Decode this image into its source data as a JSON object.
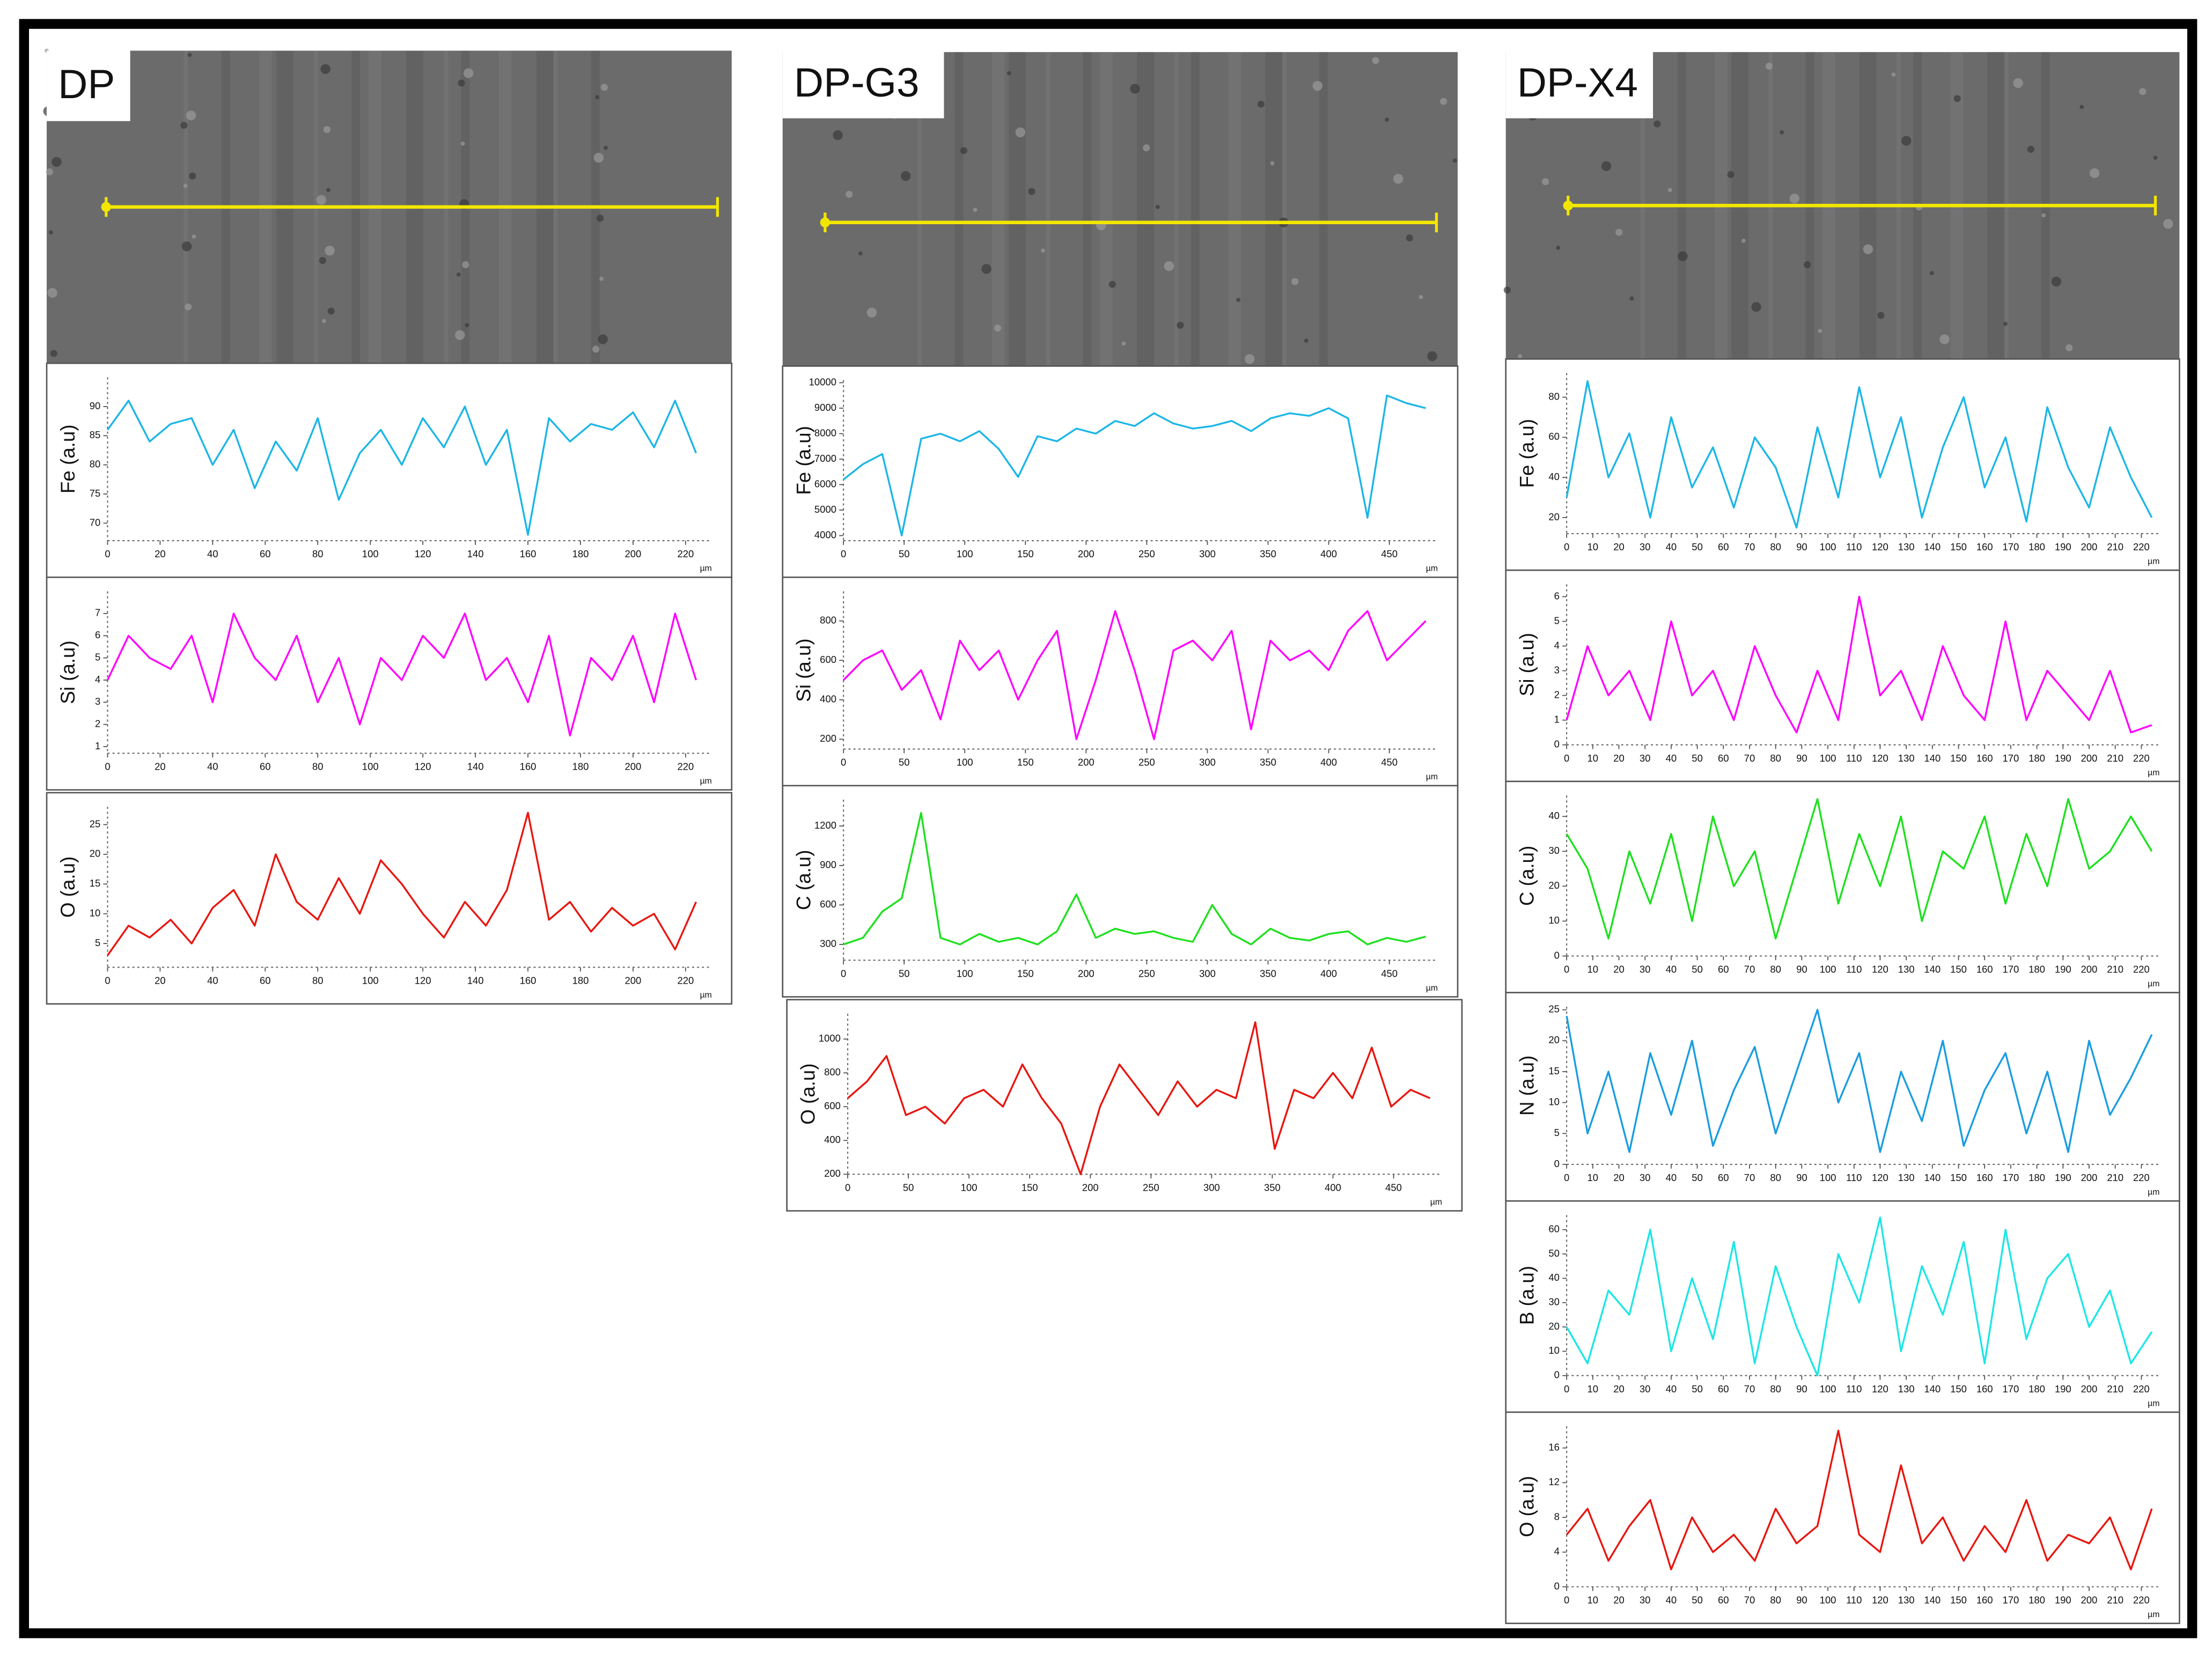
{
  "panel_titles": [
    "DP",
    "DP-G3",
    "DP-X4"
  ],
  "chart_data": [
    {
      "type": "line",
      "ylabel": "Fe (a.u)",
      "xlabel": "µm",
      "color": "#1cb6e6",
      "x": [
        0,
        8,
        16,
        24,
        32,
        40,
        48,
        56,
        64,
        72,
        80,
        88,
        96,
        104,
        112,
        120,
        128,
        136,
        144,
        152,
        160,
        168,
        176,
        184,
        192,
        200,
        208,
        216,
        224
      ],
      "values": [
        86,
        91,
        84,
        87,
        88,
        80,
        86,
        76,
        84,
        79,
        88,
        74,
        82,
        86,
        80,
        88,
        83,
        90,
        80,
        86,
        68,
        88,
        84,
        87,
        86,
        89,
        83,
        91,
        82
      ],
      "xlim": [
        0,
        230
      ],
      "ylim": [
        67,
        95
      ],
      "xticks": [
        0,
        20,
        40,
        60,
        80,
        100,
        120,
        140,
        160,
        180,
        200,
        220
      ],
      "yticks": [
        70,
        75,
        80,
        85,
        90
      ]
    },
    {
      "type": "line",
      "ylabel": "Si (a.u)",
      "xlabel": "µm",
      "color": "#ff00ff",
      "x": [
        0,
        8,
        16,
        24,
        32,
        40,
        48,
        56,
        64,
        72,
        80,
        88,
        96,
        104,
        112,
        120,
        128,
        136,
        144,
        152,
        160,
        168,
        176,
        184,
        192,
        200,
        208,
        216,
        224
      ],
      "values": [
        4,
        6,
        5,
        4.5,
        6,
        3,
        7,
        5,
        4,
        6,
        3,
        5,
        2,
        5,
        4,
        6,
        5,
        7,
        4,
        5,
        3,
        6,
        1.5,
        5,
        4,
        6,
        3,
        7,
        4
      ],
      "xlim": [
        0,
        230
      ],
      "ylim": [
        0.7,
        8
      ],
      "xticks": [
        0,
        20,
        40,
        60,
        80,
        100,
        120,
        140,
        160,
        180,
        200,
        220
      ],
      "yticks": [
        1,
        2,
        3,
        4,
        5,
        6,
        7
      ]
    },
    {
      "type": "line",
      "ylabel": "O (a.u)",
      "xlabel": "µm",
      "color": "#e8160f",
      "x": [
        0,
        8,
        16,
        24,
        32,
        40,
        48,
        56,
        64,
        72,
        80,
        88,
        96,
        104,
        112,
        120,
        128,
        136,
        144,
        152,
        160,
        168,
        176,
        184,
        192,
        200,
        208,
        216,
        224
      ],
      "values": [
        3,
        8,
        6,
        9,
        5,
        11,
        14,
        8,
        20,
        12,
        9,
        16,
        10,
        19,
        15,
        10,
        6,
        12,
        8,
        14,
        27,
        9,
        12,
        7,
        11,
        8,
        10,
        4,
        12
      ],
      "xlim": [
        0,
        230
      ],
      "ylim": [
        1,
        28
      ],
      "xticks": [
        0,
        20,
        40,
        60,
        80,
        100,
        120,
        140,
        160,
        180,
        200,
        220
      ],
      "yticks": [
        5,
        10,
        15,
        20,
        25
      ]
    },
    {
      "type": "line",
      "ylabel": "Fe (a.u)",
      "xlabel": "µm",
      "color": "#1cb6e6",
      "x": [
        0,
        16,
        32,
        48,
        64,
        80,
        96,
        112,
        128,
        144,
        160,
        176,
        192,
        208,
        224,
        240,
        256,
        272,
        288,
        304,
        320,
        336,
        352,
        368,
        384,
        400,
        416,
        432,
        448,
        464,
        480
      ],
      "values": [
        6200,
        6800,
        7200,
        4000,
        7800,
        8000,
        7700,
        8100,
        7400,
        6300,
        7900,
        7700,
        8200,
        8000,
        8500,
        8300,
        8800,
        8400,
        8200,
        8300,
        8500,
        8100,
        8600,
        8800,
        8700,
        9000,
        8600,
        4700,
        9500,
        9200,
        9000
      ],
      "xlim": [
        0,
        490
      ],
      "ylim": [
        3800,
        10100
      ],
      "xticks": [
        0,
        50,
        100,
        150,
        200,
        250,
        300,
        350,
        400,
        450
      ],
      "yticks": [
        4000,
        5000,
        6000,
        7000,
        8000,
        9000,
        10000
      ]
    },
    {
      "type": "line",
      "ylabel": "Si (a.u)",
      "xlabel": "µm",
      "color": "#ff00ff",
      "x": [
        0,
        16,
        32,
        48,
        64,
        80,
        96,
        112,
        128,
        144,
        160,
        176,
        192,
        208,
        224,
        240,
        256,
        272,
        288,
        304,
        320,
        336,
        352,
        368,
        384,
        400,
        416,
        432,
        448,
        464,
        480
      ],
      "values": [
        500,
        600,
        650,
        450,
        550,
        300,
        700,
        550,
        650,
        400,
        600,
        750,
        200,
        500,
        850,
        550,
        200,
        650,
        700,
        600,
        750,
        250,
        700,
        600,
        650,
        550,
        750,
        850,
        600,
        700,
        800
      ],
      "xlim": [
        0,
        490
      ],
      "ylim": [
        150,
        950
      ],
      "xticks": [
        0,
        50,
        100,
        150,
        200,
        250,
        300,
        350,
        400,
        450
      ],
      "yticks": [
        200,
        400,
        600,
        800
      ]
    },
    {
      "type": "line",
      "ylabel": "C (a.u)",
      "xlabel": "µm",
      "color": "#1ee01e",
      "x": [
        0,
        16,
        32,
        48,
        64,
        80,
        96,
        112,
        128,
        144,
        160,
        176,
        192,
        208,
        224,
        240,
        256,
        272,
        288,
        304,
        320,
        336,
        352,
        368,
        384,
        400,
        416,
        432,
        448,
        464,
        480
      ],
      "values": [
        300,
        350,
        550,
        650,
        1300,
        350,
        300,
        380,
        320,
        350,
        300,
        400,
        680,
        350,
        420,
        380,
        400,
        350,
        320,
        600,
        380,
        300,
        420,
        350,
        330,
        380,
        400,
        300,
        350,
        320,
        360
      ],
      "xlim": [
        0,
        490
      ],
      "ylim": [
        180,
        1400
      ],
      "xticks": [
        0,
        50,
        100,
        150,
        200,
        250,
        300,
        350,
        400,
        450
      ],
      "yticks": [
        300,
        600,
        900,
        1200
      ]
    },
    {
      "type": "line",
      "ylabel": "O (a.u)",
      "xlabel": "µm",
      "color": "#e8160f",
      "x": [
        0,
        16,
        32,
        48,
        64,
        80,
        96,
        112,
        128,
        144,
        160,
        176,
        192,
        208,
        224,
        240,
        256,
        272,
        288,
        304,
        320,
        336,
        352,
        368,
        384,
        400,
        416,
        432,
        448,
        464,
        480
      ],
      "values": [
        650,
        750,
        900,
        550,
        600,
        500,
        650,
        700,
        600,
        850,
        650,
        500,
        200,
        600,
        850,
        700,
        550,
        750,
        600,
        700,
        650,
        1100,
        350,
        700,
        650,
        800,
        650,
        950,
        600,
        700,
        650
      ],
      "xlim": [
        0,
        490
      ],
      "ylim": [
        200,
        1150
      ],
      "xticks": [
        0,
        50,
        100,
        150,
        200,
        250,
        300,
        350,
        400,
        450
      ],
      "yticks": [
        200,
        400,
        600,
        800,
        1000
      ]
    },
    {
      "type": "line",
      "ylabel": "Fe (a.u)",
      "xlabel": "µm",
      "color": "#1cb6e6",
      "x": [
        0,
        8,
        16,
        24,
        32,
        40,
        48,
        56,
        64,
        72,
        80,
        88,
        96,
        104,
        112,
        120,
        128,
        136,
        144,
        152,
        160,
        168,
        176,
        184,
        192,
        200,
        208,
        216,
        224
      ],
      "values": [
        30,
        88,
        40,
        62,
        20,
        70,
        35,
        55,
        25,
        60,
        45,
        15,
        65,
        30,
        85,
        40,
        70,
        20,
        55,
        80,
        35,
        60,
        18,
        75,
        45,
        25,
        65,
        40,
        20
      ],
      "xlim": [
        0,
        227
      ],
      "ylim": [
        12,
        92
      ],
      "xticks": [
        0,
        10,
        20,
        30,
        40,
        50,
        60,
        70,
        80,
        90,
        100,
        110,
        120,
        130,
        140,
        150,
        160,
        170,
        180,
        190,
        200,
        210,
        220
      ],
      "yticks": [
        20,
        40,
        60,
        80
      ]
    },
    {
      "type": "line",
      "ylabel": "Si (a.u)",
      "xlabel": "µm",
      "color": "#ff00ff",
      "x": [
        0,
        8,
        16,
        24,
        32,
        40,
        48,
        56,
        64,
        72,
        80,
        88,
        96,
        104,
        112,
        120,
        128,
        136,
        144,
        152,
        160,
        168,
        176,
        184,
        192,
        200,
        208,
        216,
        224
      ],
      "values": [
        1,
        4,
        2,
        3,
        1,
        5,
        2,
        3,
        1,
        4,
        2,
        0.5,
        3,
        1,
        6,
        2,
        3,
        1,
        4,
        2,
        1,
        5,
        1,
        3,
        2,
        1,
        3,
        0.5,
        0.8
      ],
      "xlim": [
        0,
        227
      ],
      "ylim": [
        0,
        6.5
      ],
      "xticks": [
        0,
        10,
        20,
        30,
        40,
        50,
        60,
        70,
        80,
        90,
        100,
        110,
        120,
        130,
        140,
        150,
        160,
        170,
        180,
        190,
        200,
        210,
        220
      ],
      "yticks": [
        0,
        1,
        2,
        3,
        4,
        5,
        6
      ]
    },
    {
      "type": "line",
      "ylabel": "C (a.u)",
      "xlabel": "µm",
      "color": "#1ee01e",
      "x": [
        0,
        8,
        16,
        24,
        32,
        40,
        48,
        56,
        64,
        72,
        80,
        88,
        96,
        104,
        112,
        120,
        128,
        136,
        144,
        152,
        160,
        168,
        176,
        184,
        192,
        200,
        208,
        216,
        224
      ],
      "values": [
        35,
        25,
        5,
        30,
        15,
        35,
        10,
        40,
        20,
        30,
        5,
        25,
        45,
        15,
        35,
        20,
        40,
        10,
        30,
        25,
        40,
        15,
        35,
        20,
        45,
        25,
        30,
        40,
        30
      ],
      "xlim": [
        0,
        227
      ],
      "ylim": [
        0,
        46
      ],
      "xticks": [
        0,
        10,
        20,
        30,
        40,
        50,
        60,
        70,
        80,
        90,
        100,
        110,
        120,
        130,
        140,
        150,
        160,
        170,
        180,
        190,
        200,
        210,
        220
      ],
      "yticks": [
        0,
        10,
        20,
        30,
        40
      ]
    },
    {
      "type": "line",
      "ylabel": "N (a.u)",
      "xlabel": "µm",
      "color": "#1a9de0",
      "x": [
        0,
        8,
        16,
        24,
        32,
        40,
        48,
        56,
        64,
        72,
        80,
        88,
        96,
        104,
        112,
        120,
        128,
        136,
        144,
        152,
        160,
        168,
        176,
        184,
        192,
        200,
        208,
        216,
        224
      ],
      "values": [
        24,
        5,
        15,
        2,
        18,
        8,
        20,
        3,
        12,
        19,
        5,
        15,
        25,
        10,
        18,
        2,
        15,
        7,
        20,
        3,
        12,
        18,
        5,
        15,
        2,
        20,
        8,
        14,
        21
      ],
      "xlim": [
        0,
        227
      ],
      "ylim": [
        0,
        25.5
      ],
      "xticks": [
        0,
        10,
        20,
        30,
        40,
        50,
        60,
        70,
        80,
        90,
        100,
        110,
        120,
        130,
        140,
        150,
        160,
        170,
        180,
        190,
        200,
        210,
        220
      ],
      "yticks": [
        0,
        5,
        10,
        15,
        20,
        25
      ]
    },
    {
      "type": "line",
      "ylabel": "B (a.u)",
      "xlabel": "µm",
      "color": "#1ee6e6",
      "x": [
        0,
        8,
        16,
        24,
        32,
        40,
        48,
        56,
        64,
        72,
        80,
        88,
        96,
        104,
        112,
        120,
        128,
        136,
        144,
        152,
        160,
        168,
        176,
        184,
        192,
        200,
        208,
        216,
        224
      ],
      "values": [
        20,
        5,
        35,
        25,
        60,
        10,
        40,
        15,
        55,
        5,
        45,
        20,
        0,
        50,
        30,
        65,
        10,
        45,
        25,
        55,
        5,
        60,
        15,
        40,
        50,
        20,
        35,
        5,
        18
      ],
      "xlim": [
        0,
        227
      ],
      "ylim": [
        0,
        66
      ],
      "xticks": [
        0,
        10,
        20,
        30,
        40,
        50,
        60,
        70,
        80,
        90,
        100,
        110,
        120,
        130,
        140,
        150,
        160,
        170,
        180,
        190,
        200,
        210,
        220
      ],
      "yticks": [
        0,
        10,
        20,
        30,
        40,
        50,
        60
      ]
    },
    {
      "type": "line",
      "ylabel": "O (a.u)",
      "xlabel": "µm",
      "color": "#e8160f",
      "x": [
        0,
        8,
        16,
        24,
        32,
        40,
        48,
        56,
        64,
        72,
        80,
        88,
        96,
        104,
        112,
        120,
        128,
        136,
        144,
        152,
        160,
        168,
        176,
        184,
        192,
        200,
        208,
        216,
        224
      ],
      "values": [
        6,
        9,
        3,
        7,
        10,
        2,
        8,
        4,
        6,
        3,
        9,
        5,
        7,
        18,
        6,
        4,
        14,
        5,
        8,
        3,
        7,
        4,
        10,
        3,
        6,
        5,
        8,
        2,
        9
      ],
      "xlim": [
        0,
        227
      ],
      "ylim": [
        0,
        18.5
      ],
      "xticks": [
        0,
        10,
        20,
        30,
        40,
        50,
        60,
        70,
        80,
        90,
        100,
        110,
        120,
        130,
        140,
        150,
        160,
        170,
        180,
        190,
        200,
        210,
        220
      ],
      "yticks": [
        0,
        4,
        8,
        12,
        16
      ]
    }
  ]
}
